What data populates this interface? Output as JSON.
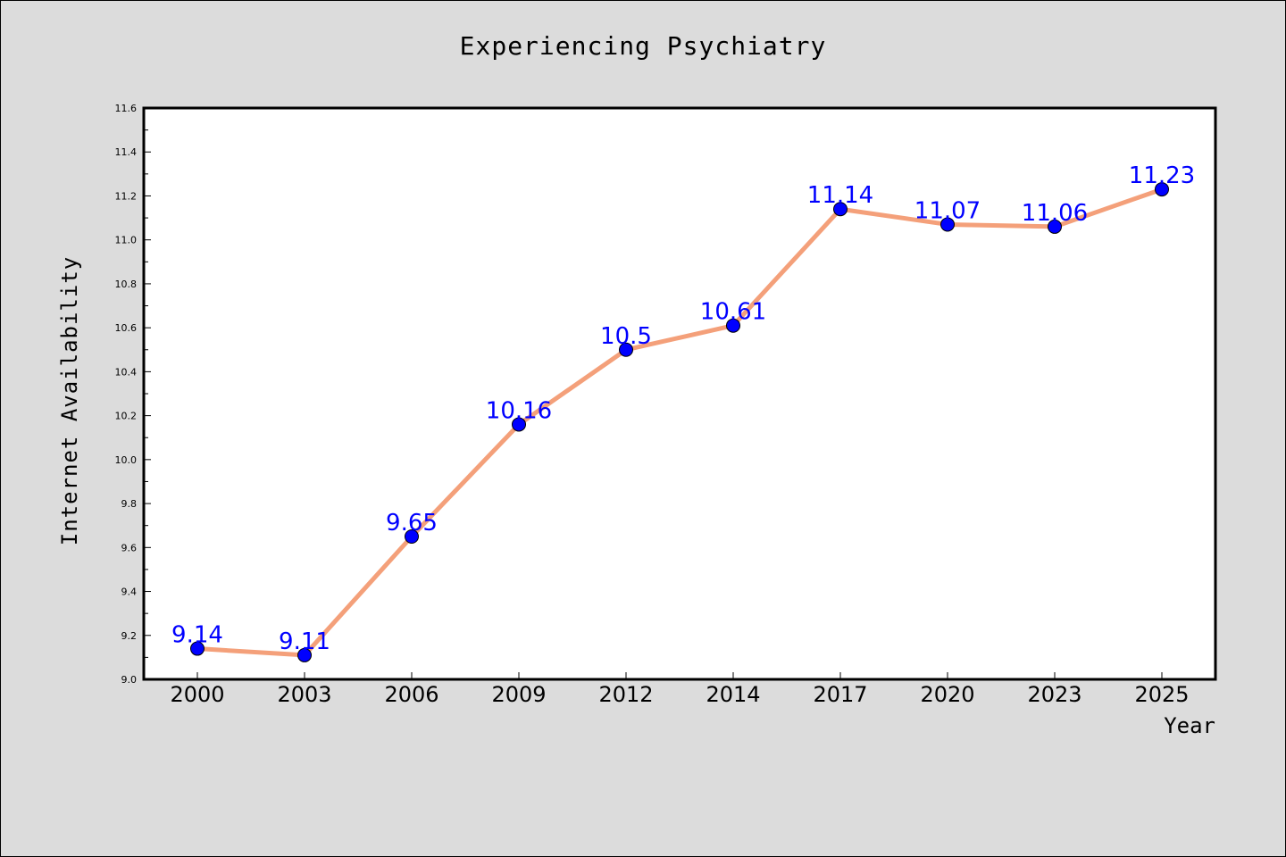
{
  "chart_data": {
    "type": "line",
    "title": "Experiencing Psychiatry",
    "xlabel": "Year",
    "ylabel": "Internet Availability",
    "categories": [
      "2000",
      "2003",
      "2006",
      "2009",
      "2012",
      "2014",
      "2017",
      "2020",
      "2023",
      "2025"
    ],
    "series": [
      {
        "values": [
          9.14,
          9.11,
          9.65,
          10.16,
          10.5,
          10.61,
          11.14,
          11.07,
          11.06,
          11.23
        ],
        "data_labels": [
          "9.14",
          "9.11",
          "9.65",
          "10.16",
          "10.5",
          "10.61",
          "11.14",
          "11.07",
          "11.06",
          "11.23"
        ],
        "line_color": "#f4a07a",
        "marker_color": "#0000ff"
      }
    ],
    "ylim": [
      9.0,
      11.6
    ],
    "yticks": [
      "9.0",
      "9.2",
      "9.4",
      "9.6",
      "9.8",
      "10.0",
      "10.2",
      "10.4",
      "10.6",
      "10.8",
      "11.0",
      "11.2",
      "11.4",
      "11.6"
    ],
    "grid": false,
    "legend": "none",
    "colors": {
      "background": "#dcdcdc",
      "plot_area": "#ffffff",
      "line": "#f4a07a",
      "marker": "#0000ff",
      "data_label": "#0000ff"
    }
  }
}
